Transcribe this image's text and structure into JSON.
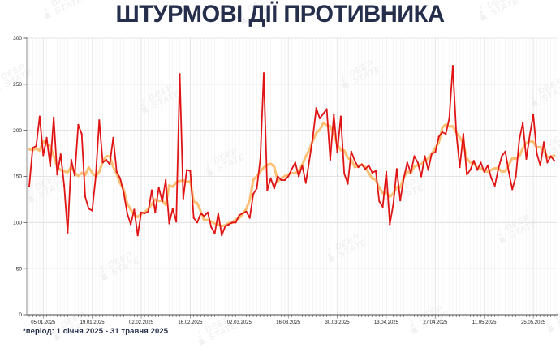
{
  "title": "ШТУРМОВІ ДІЇ ПРОТИВНИКА",
  "footer": {
    "period_note": "*період: 1 січня 2025 - 31 травня 2025"
  },
  "watermark": {
    "line1": "DEEP",
    "line2": "STATE"
  },
  "colors": {
    "daily_line": "#e01414",
    "average_line": "#fbbd6b",
    "title_text": "#252e4a",
    "axis_text": "#1a1a1a",
    "grid_minor": "#efefef",
    "grid_major": "#dcdcdc"
  },
  "chart_data": {
    "type": "line",
    "title": "ШТУРМОВІ ДІЇ ПРОТИВНИКА",
    "period_start": "01.01.2025",
    "period_end": "31.05.2025",
    "ylim": [
      0,
      300
    ],
    "y_ticks": [
      0,
      50,
      100,
      150,
      200,
      250,
      300
    ],
    "grid": true,
    "x_minor_tick_every_days": 1,
    "x_tick_labels": [
      "05.01.2025",
      "19.01.2025",
      "02.02.2025",
      "16.02.2025",
      "02.03.2025",
      "16.03.2025",
      "30.03.2025",
      "13.04.2025",
      "27.04.2025",
      "11.05.2025",
      "25.05.2025"
    ],
    "x_tick_day_indices": [
      4,
      18,
      32,
      46,
      60,
      74,
      88,
      102,
      116,
      130,
      144
    ],
    "series": [
      {
        "name": "daily-assault-actions",
        "color": "#e01414",
        "values": [
          139,
          181,
          183,
          215,
          173,
          192,
          161,
          214,
          152,
          174,
          140,
          89,
          168,
          151,
          206,
          196,
          128,
          115,
          113,
          150,
          211,
          165,
          168,
          163,
          192,
          155,
          148,
          132,
          110,
          98,
          114,
          86,
          111,
          110,
          112,
          135,
          111,
          138,
          123,
          146,
          99,
          115,
          101,
          261,
          126,
          157,
          156,
          105,
          100,
          110,
          107,
          111,
          95,
          88,
          110,
          86,
          96,
          98,
          100,
          100,
          108,
          110,
          112,
          105,
          131,
          137,
          168,
          262,
          135,
          148,
          137,
          150,
          146,
          146,
          150,
          158,
          165,
          150,
          162,
          143,
          167,
          192,
          224,
          213,
          218,
          223,
          168,
          217,
          176,
          215,
          153,
          142,
          177,
          167,
          160,
          163,
          158,
          162,
          154,
          156,
          123,
          117,
          155,
          98,
          120,
          158,
          124,
          148,
          165,
          154,
          172,
          165,
          150,
          172,
          157,
          175,
          176,
          193,
          198,
          196,
          213,
          270,
          198,
          160,
          196,
          152,
          157,
          167,
          157,
          165,
          155,
          162,
          148,
          140,
          158,
          172,
          177,
          155,
          136,
          150,
          190,
          208,
          169,
          195,
          217,
          175,
          162,
          187,
          165,
          172,
          167
        ]
      },
      {
        "name": "seven-day-moving-average",
        "color": "#fbbd6b",
        "derived_from": "daily-assault-actions",
        "window": 7
      }
    ]
  }
}
